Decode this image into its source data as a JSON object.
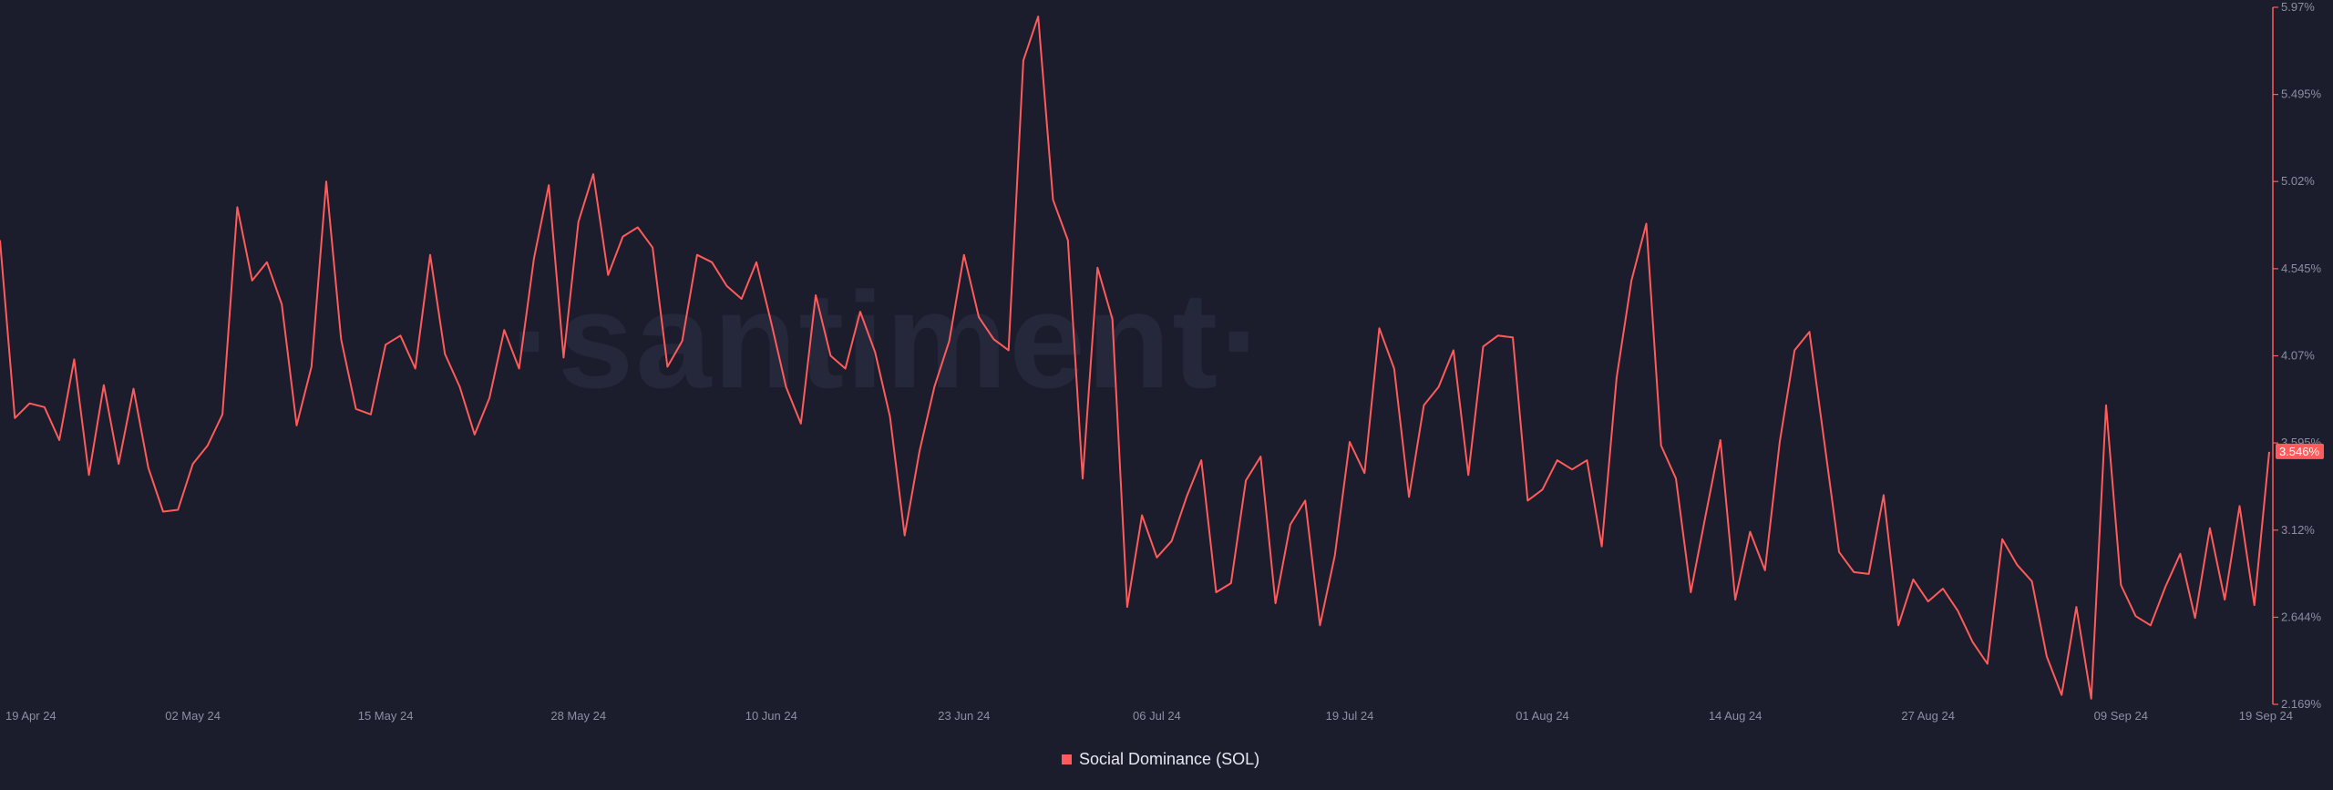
{
  "watermark": "·santiment·",
  "colors": {
    "background": "#1b1c2c",
    "series": "#ff5b5b",
    "axis": "#8d8fa3",
    "grid": "#24263a"
  },
  "chart_data": {
    "type": "line",
    "title": "",
    "xlabel": "",
    "ylabel": "",
    "x_start": "2024-04-19",
    "x_end": "2024-09-19",
    "x_ticks": [
      "19 Apr 24",
      "02 May 24",
      "15 May 24",
      "28 May 24",
      "10 Jun 24",
      "23 Jun 24",
      "06 Jul 24",
      "19 Jul 24",
      "01 Aug 24",
      "14 Aug 24",
      "27 Aug 24",
      "09 Sep 24",
      "19 Sep 24"
    ],
    "y_ticks": [
      "2.169%",
      "2.644%",
      "3.12%",
      "3.595%",
      "4.07%",
      "4.545%",
      "5.02%",
      "5.495%",
      "5.97%"
    ],
    "ylim": [
      2.169,
      5.97
    ],
    "y_axis_position": "right",
    "grid": false,
    "legend_position": "bottom-center",
    "last_value_label": "3.546%",
    "series": [
      {
        "name": "Social Dominance (SOL)",
        "color": "#ff5b5b",
        "points": [
          [
            "2024-04-19",
            4.7
          ],
          [
            "2024-04-20",
            3.73
          ],
          [
            "2024-04-21",
            3.81
          ],
          [
            "2024-04-22",
            3.79
          ],
          [
            "2024-04-23",
            3.61
          ],
          [
            "2024-04-24",
            4.05
          ],
          [
            "2024-04-25",
            3.42
          ],
          [
            "2024-04-26",
            3.91
          ],
          [
            "2024-04-27",
            3.48
          ],
          [
            "2024-04-28",
            3.89
          ],
          [
            "2024-04-29",
            3.46
          ],
          [
            "2024-04-30",
            3.22
          ],
          [
            "2024-05-01",
            3.23
          ],
          [
            "2024-05-02",
            3.48
          ],
          [
            "2024-05-03",
            3.58
          ],
          [
            "2024-05-04",
            3.75
          ],
          [
            "2024-05-05",
            4.88
          ],
          [
            "2024-05-06",
            4.48
          ],
          [
            "2024-05-07",
            4.58
          ],
          [
            "2024-05-08",
            4.35
          ],
          [
            "2024-05-09",
            3.69
          ],
          [
            "2024-05-10",
            4.01
          ],
          [
            "2024-05-11",
            5.02
          ],
          [
            "2024-05-12",
            4.16
          ],
          [
            "2024-05-13",
            3.78
          ],
          [
            "2024-05-14",
            3.75
          ],
          [
            "2024-05-15",
            4.13
          ],
          [
            "2024-05-16",
            4.18
          ],
          [
            "2024-05-17",
            4.0
          ],
          [
            "2024-05-18",
            4.62
          ],
          [
            "2024-05-19",
            4.08
          ],
          [
            "2024-05-20",
            3.9
          ],
          [
            "2024-05-21",
            3.64
          ],
          [
            "2024-05-22",
            3.84
          ],
          [
            "2024-05-23",
            4.21
          ],
          [
            "2024-05-24",
            4.0
          ],
          [
            "2024-05-25",
            4.6
          ],
          [
            "2024-05-26",
            5.0
          ],
          [
            "2024-05-27",
            4.06
          ],
          [
            "2024-05-28",
            4.8
          ],
          [
            "2024-05-29",
            5.06
          ],
          [
            "2024-05-30",
            4.51
          ],
          [
            "2024-05-31",
            4.72
          ],
          [
            "2024-06-01",
            4.77
          ],
          [
            "2024-06-02",
            4.66
          ],
          [
            "2024-06-03",
            4.01
          ],
          [
            "2024-06-04",
            4.15
          ],
          [
            "2024-06-05",
            4.62
          ],
          [
            "2024-06-06",
            4.58
          ],
          [
            "2024-06-07",
            4.45
          ],
          [
            "2024-06-08",
            4.38
          ],
          [
            "2024-06-09",
            4.58
          ],
          [
            "2024-06-10",
            4.25
          ],
          [
            "2024-06-11",
            3.9
          ],
          [
            "2024-06-12",
            3.7
          ],
          [
            "2024-06-13",
            4.4
          ],
          [
            "2024-06-14",
            4.07
          ],
          [
            "2024-06-15",
            4.0
          ],
          [
            "2024-06-16",
            4.31
          ],
          [
            "2024-06-17",
            4.09
          ],
          [
            "2024-06-18",
            3.74
          ],
          [
            "2024-06-19",
            3.09
          ],
          [
            "2024-06-20",
            3.55
          ],
          [
            "2024-06-21",
            3.9
          ],
          [
            "2024-06-22",
            4.15
          ],
          [
            "2024-06-23",
            4.62
          ],
          [
            "2024-06-24",
            4.28
          ],
          [
            "2024-06-25",
            4.16
          ],
          [
            "2024-06-26",
            4.1
          ],
          [
            "2024-06-27",
            5.68
          ],
          [
            "2024-06-28",
            5.92
          ],
          [
            "2024-06-29",
            4.92
          ],
          [
            "2024-06-30",
            4.7
          ],
          [
            "2024-07-01",
            3.4
          ],
          [
            "2024-07-02",
            4.55
          ],
          [
            "2024-07-03",
            4.27
          ],
          [
            "2024-07-04",
            2.7
          ],
          [
            "2024-07-05",
            3.2
          ],
          [
            "2024-07-06",
            2.97
          ],
          [
            "2024-07-07",
            3.06
          ],
          [
            "2024-07-08",
            3.3
          ],
          [
            "2024-07-09",
            3.5
          ],
          [
            "2024-07-10",
            2.78
          ],
          [
            "2024-07-11",
            2.83
          ],
          [
            "2024-07-12",
            3.39
          ],
          [
            "2024-07-13",
            3.52
          ],
          [
            "2024-07-14",
            2.72
          ],
          [
            "2024-07-15",
            3.15
          ],
          [
            "2024-07-16",
            3.28
          ],
          [
            "2024-07-17",
            2.6
          ],
          [
            "2024-07-18",
            2.98
          ],
          [
            "2024-07-19",
            3.6
          ],
          [
            "2024-07-20",
            3.43
          ],
          [
            "2024-07-21",
            4.22
          ],
          [
            "2024-07-22",
            4.0
          ],
          [
            "2024-07-23",
            3.3
          ],
          [
            "2024-07-24",
            3.8
          ],
          [
            "2024-07-25",
            3.9
          ],
          [
            "2024-07-26",
            4.1
          ],
          [
            "2024-07-27",
            3.42
          ],
          [
            "2024-07-28",
            4.12
          ],
          [
            "2024-07-29",
            4.18
          ],
          [
            "2024-07-30",
            4.17
          ],
          [
            "2024-07-31",
            3.28
          ],
          [
            "2024-08-01",
            3.34
          ],
          [
            "2024-08-02",
            3.5
          ],
          [
            "2024-08-03",
            3.45
          ],
          [
            "2024-08-04",
            3.5
          ],
          [
            "2024-08-05",
            3.03
          ],
          [
            "2024-08-06",
            3.95
          ],
          [
            "2024-08-07",
            4.48
          ],
          [
            "2024-08-08",
            4.79
          ],
          [
            "2024-08-09",
            3.58
          ],
          [
            "2024-08-10",
            3.4
          ],
          [
            "2024-08-11",
            2.78
          ],
          [
            "2024-08-12",
            3.2
          ],
          [
            "2024-08-13",
            3.61
          ],
          [
            "2024-08-14",
            2.74
          ],
          [
            "2024-08-15",
            3.11
          ],
          [
            "2024-08-16",
            2.9
          ],
          [
            "2024-08-17",
            3.6
          ],
          [
            "2024-08-18",
            4.1
          ],
          [
            "2024-08-19",
            4.2
          ],
          [
            "2024-08-20",
            3.6
          ],
          [
            "2024-08-21",
            3.0
          ],
          [
            "2024-08-22",
            2.89
          ],
          [
            "2024-08-23",
            2.88
          ],
          [
            "2024-08-24",
            3.31
          ],
          [
            "2024-08-25",
            2.6
          ],
          [
            "2024-08-26",
            2.85
          ],
          [
            "2024-08-27",
            2.73
          ],
          [
            "2024-08-28",
            2.8
          ],
          [
            "2024-08-29",
            2.68
          ],
          [
            "2024-08-30",
            2.51
          ],
          [
            "2024-08-31",
            2.39
          ],
          [
            "2024-09-01",
            3.07
          ],
          [
            "2024-09-02",
            2.93
          ],
          [
            "2024-09-03",
            2.84
          ],
          [
            "2024-09-04",
            2.43
          ],
          [
            "2024-09-05",
            2.22
          ],
          [
            "2024-09-06",
            2.7
          ],
          [
            "2024-09-07",
            2.2
          ],
          [
            "2024-09-08",
            3.8
          ],
          [
            "2024-09-09",
            2.82
          ],
          [
            "2024-09-10",
            2.65
          ],
          [
            "2024-09-11",
            2.6
          ],
          [
            "2024-09-12",
            2.81
          ],
          [
            "2024-09-13",
            2.99
          ],
          [
            "2024-09-14",
            2.64
          ],
          [
            "2024-09-15",
            3.13
          ],
          [
            "2024-09-16",
            2.74
          ],
          [
            "2024-09-17",
            3.25
          ],
          [
            "2024-09-18",
            2.71
          ],
          [
            "2024-09-19",
            3.546
          ]
        ]
      }
    ]
  }
}
